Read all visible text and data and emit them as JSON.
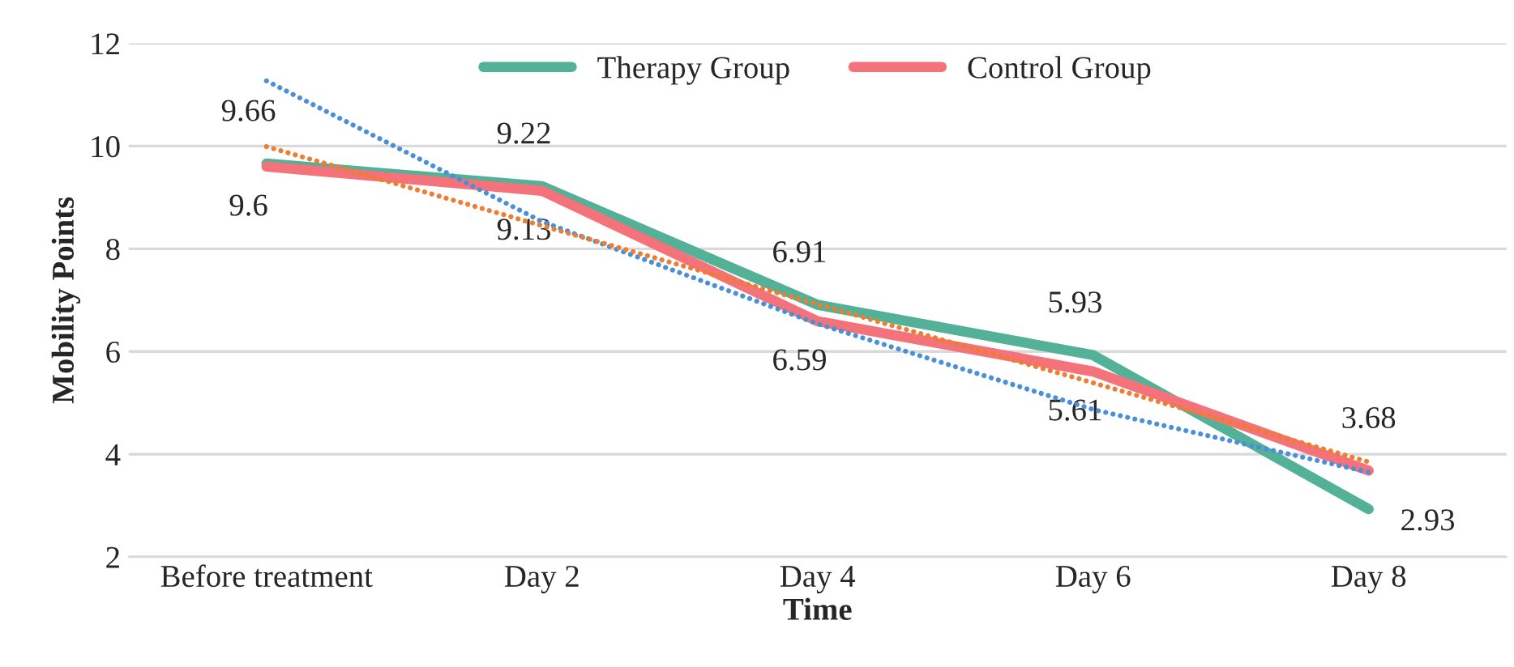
{
  "chart_data": {
    "type": "line",
    "xlabel": "Time",
    "ylabel": "Mobility Points",
    "categories": [
      "Before treatment",
      "Day 2",
      "Day 4",
      "Day 6",
      "Day 8"
    ],
    "series": [
      {
        "name": "Therapy Group",
        "color": "#52b197",
        "values": [
          9.66,
          9.22,
          6.91,
          5.93,
          2.93
        ],
        "value_labels": [
          "9.66",
          "9.22",
          "6.91",
          "5.93",
          "2.93"
        ]
      },
      {
        "name": "Control Group",
        "color": "#f4727a",
        "values": [
          9.6,
          9.13,
          6.59,
          5.61,
          3.68
        ],
        "value_labels": [
          "9.6",
          "9.13",
          "6.59",
          "5.61",
          "3.68"
        ]
      },
      {
        "color": "#4a90d9",
        "values": [
          11.27,
          8.53,
          6.54,
          4.87,
          3.65
        ],
        "line_style": "dotted"
      },
      {
        "color": "#ed7d31",
        "values": [
          9.99,
          8.45,
          6.92,
          5.39,
          3.85
        ],
        "line_style": "dotted"
      }
    ],
    "ylim": [
      2,
      12
    ],
    "yticks": [
      2,
      4,
      6,
      8,
      10,
      12
    ],
    "grid": "y",
    "legend": "top",
    "line_style": "solid",
    "marker": "none"
  }
}
